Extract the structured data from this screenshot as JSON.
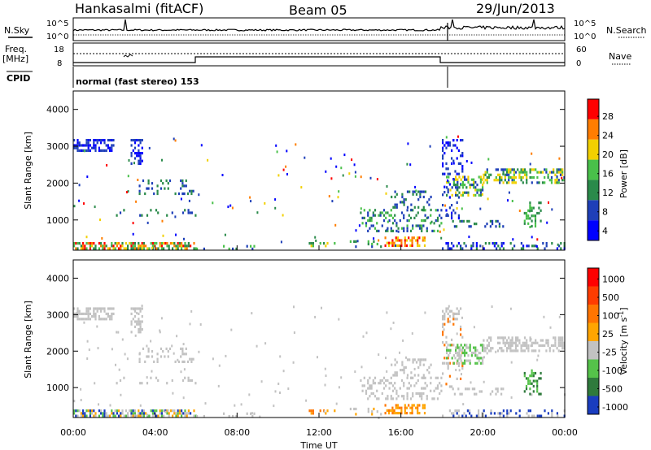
{
  "header": {
    "station": "Hankasalmi (fitACF)",
    "beam": "Beam 05",
    "date": "29/Jun/2013"
  },
  "strips": {
    "nsky_label": "N.Sky",
    "nsearch_label": "N.Search",
    "freq_label_1": "Freq.",
    "freq_label_2": "[MHz]",
    "nave_label": "Nave",
    "cpid_label": "CPID",
    "noise_ticks_left": [
      "10^5",
      "10^0"
    ],
    "noise_ticks_right": [
      "10^5",
      "10^0"
    ],
    "freq_ticks_left": [
      "18",
      "8"
    ],
    "nave_ticks_right": [
      "60",
      "0"
    ],
    "cpid_text": "normal (fast stereo) 153",
    "nave_level": 52,
    "freq_level": 12.5,
    "nsky_level_log": 0.6,
    "nsearch_level_log": 1.5
  },
  "chart_data": [
    {
      "type": "heatmap",
      "name": "power",
      "ylabel": "Slant Range [km]",
      "y_ticks": [
        "4000",
        "3000",
        "2000",
        "1000"
      ],
      "ylim": [
        180,
        4500
      ],
      "colorbar_label": "Power [dB]",
      "colorbar_ticks": [
        "28",
        "24",
        "20",
        "16",
        "12",
        "8",
        "4"
      ],
      "colors": [
        "#0000ff",
        "#1e3fb8",
        "#2a8a4a",
        "#49c04a",
        "#f2d000",
        "#ff7d00",
        "#ff0000"
      ],
      "range": [
        0,
        30
      ]
    },
    {
      "type": "heatmap",
      "name": "velocity",
      "xlabel": "Time UT",
      "ylabel": "Slant Range [km]",
      "x_ticks": [
        "00:00",
        "04:00",
        "08:00",
        "12:00",
        "16:00",
        "20:00",
        "00:00"
      ],
      "y_ticks": [
        "4000",
        "3000",
        "2000",
        "1000"
      ],
      "ylim": [
        180,
        4500
      ],
      "colorbar_label": "Velocity [m s",
      "colorbar_ticks": [
        "1000",
        "500",
        "100",
        "25",
        "-25",
        "-100",
        "-500",
        "-1000"
      ],
      "colors": [
        "#1a3dbf",
        "#2f7a3c",
        "#55c24a",
        "#c2c2c2",
        "#ffa500",
        "#ff7500",
        "#ff3c00",
        "#ff0000"
      ]
    }
  ]
}
